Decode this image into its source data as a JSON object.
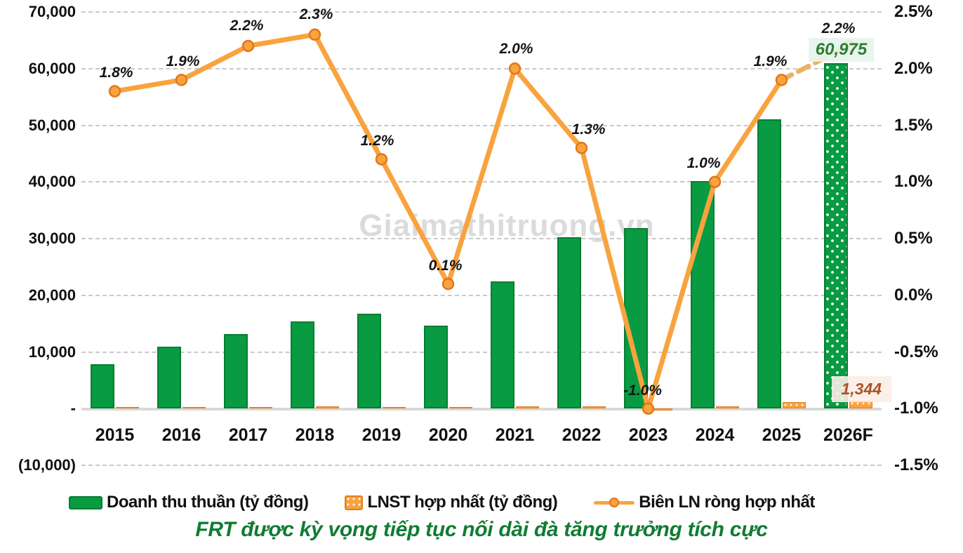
{
  "watermark": "Giaimathitruong.vn",
  "caption": "FRT được kỳ vọng tiếp tục nối dài đà tăng trưởng tích cực",
  "colors": {
    "revenue_bar": "#089b42",
    "revenue_bar_border": "#067d33",
    "profit_bar": "#f9a33e",
    "profit_bar_border": "#e07e1e",
    "margin_line": "#f9a33e",
    "margin_line_dashed": "#eab169",
    "marker_stroke": "#e2761b",
    "caption_green": "#107c33",
    "revenue_annotation_text": "#2e7d35",
    "profit_annotation_text": "#a9542b",
    "gridline": "#c9c9c9",
    "watermark_grey": "#dbdbdb"
  },
  "legend": [
    {
      "label": "Doanh thu thuần (tỷ đồng)",
      "swatch": "green-bar"
    },
    {
      "label": "LNST hợp nhất (tỷ đồng)",
      "swatch": "orange-dotted-bar"
    },
    {
      "label": "Biên LN ròng hợp nhất",
      "swatch": "orange-line-marker"
    }
  ],
  "chart_data": {
    "type": "bar",
    "subtype": "combo bar + line, dual axis",
    "categories": [
      "2015",
      "2016",
      "2017",
      "2018",
      "2019",
      "2020",
      "2021",
      "2022",
      "2023",
      "2024",
      "2025",
      "2026F"
    ],
    "series": [
      {
        "name": "Doanh thu thuần (tỷ đồng)",
        "type": "bar",
        "axis": "left",
        "values": [
          7800,
          10900,
          13200,
          15400,
          16700,
          14700,
          22500,
          30200,
          31800,
          40100,
          51100,
          60975
        ],
        "last_is_forecast_pattern": true
      },
      {
        "name": "LNST hợp nhất (tỷ đồng)",
        "type": "bar",
        "axis": "left",
        "values": [
          140,
          210,
          290,
          350,
          200,
          15,
          445,
          400,
          -330,
          410,
          1100,
          1344
        ]
      },
      {
        "name": "Biên LN ròng hợp nhất",
        "type": "line",
        "axis": "right",
        "values": [
          1.8,
          1.9,
          2.2,
          2.3,
          1.2,
          0.1,
          2.0,
          1.3,
          -1.0,
          1.0,
          1.9,
          2.2
        ],
        "point_labels": [
          "1.8%",
          "1.9%",
          "2.2%",
          "2.3%",
          "1.2%",
          "0.1%",
          "2.0%",
          "1.3%",
          "-1.0%",
          "1.0%",
          "1.9%",
          "2.2%"
        ],
        "last_segment_dashed": true
      }
    ],
    "left_axis": {
      "min": -10000,
      "max": 70000,
      "step": 10000,
      "tick_labels": [
        "70,000",
        "60,000",
        "50,000",
        "40,000",
        "30,000",
        "20,000",
        "10,000",
        "-",
        "(10,000)"
      ]
    },
    "right_axis": {
      "min": -1.5,
      "max": 2.5,
      "step": 0.5,
      "tick_labels": [
        "2.5%",
        "2.0%",
        "1.5%",
        "1.0%",
        "0.5%",
        "0.0%",
        "-0.5%",
        "-1.0%",
        "-1.5%"
      ]
    },
    "grid": "horizontal dashed",
    "legend_position": "bottom",
    "annotations": [
      {
        "text": "60,975",
        "series": "Doanh thu thuần (tỷ đồng)",
        "category": "2026F"
      },
      {
        "text": "1,344",
        "series": "LNST hợp nhất (tỷ đồng)",
        "category": "2026F"
      }
    ]
  }
}
